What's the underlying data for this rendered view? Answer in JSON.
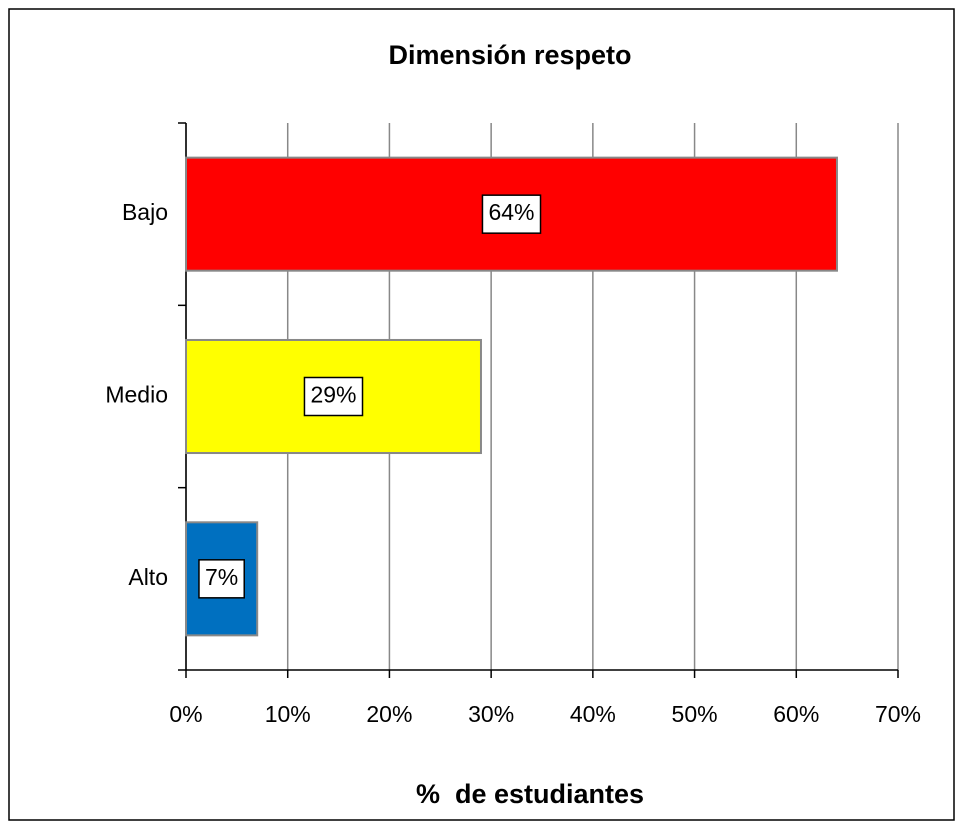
{
  "chart_data": {
    "type": "bar",
    "orientation": "horizontal",
    "title": "Dimensión respeto",
    "xlabel": "%  de estudiantes",
    "categories": [
      "Bajo",
      "Medio",
      "Alto"
    ],
    "values": [
      64,
      29,
      7
    ],
    "value_labels": [
      "64%",
      "29%",
      "7%"
    ],
    "colors": [
      "#ff0000",
      "#ffff00",
      "#0070c0"
    ],
    "xlim": [
      0,
      70
    ],
    "xticks": [
      {
        "value": 0,
        "label": "0%"
      },
      {
        "value": 10,
        "label": "10%"
      },
      {
        "value": 20,
        "label": "20%"
      },
      {
        "value": 30,
        "label": "30%"
      },
      {
        "value": 40,
        "label": "40%"
      },
      {
        "value": 50,
        "label": "50%"
      },
      {
        "value": 60,
        "label": "60%"
      },
      {
        "value": 70,
        "label": "70%"
      }
    ],
    "grid": true
  }
}
